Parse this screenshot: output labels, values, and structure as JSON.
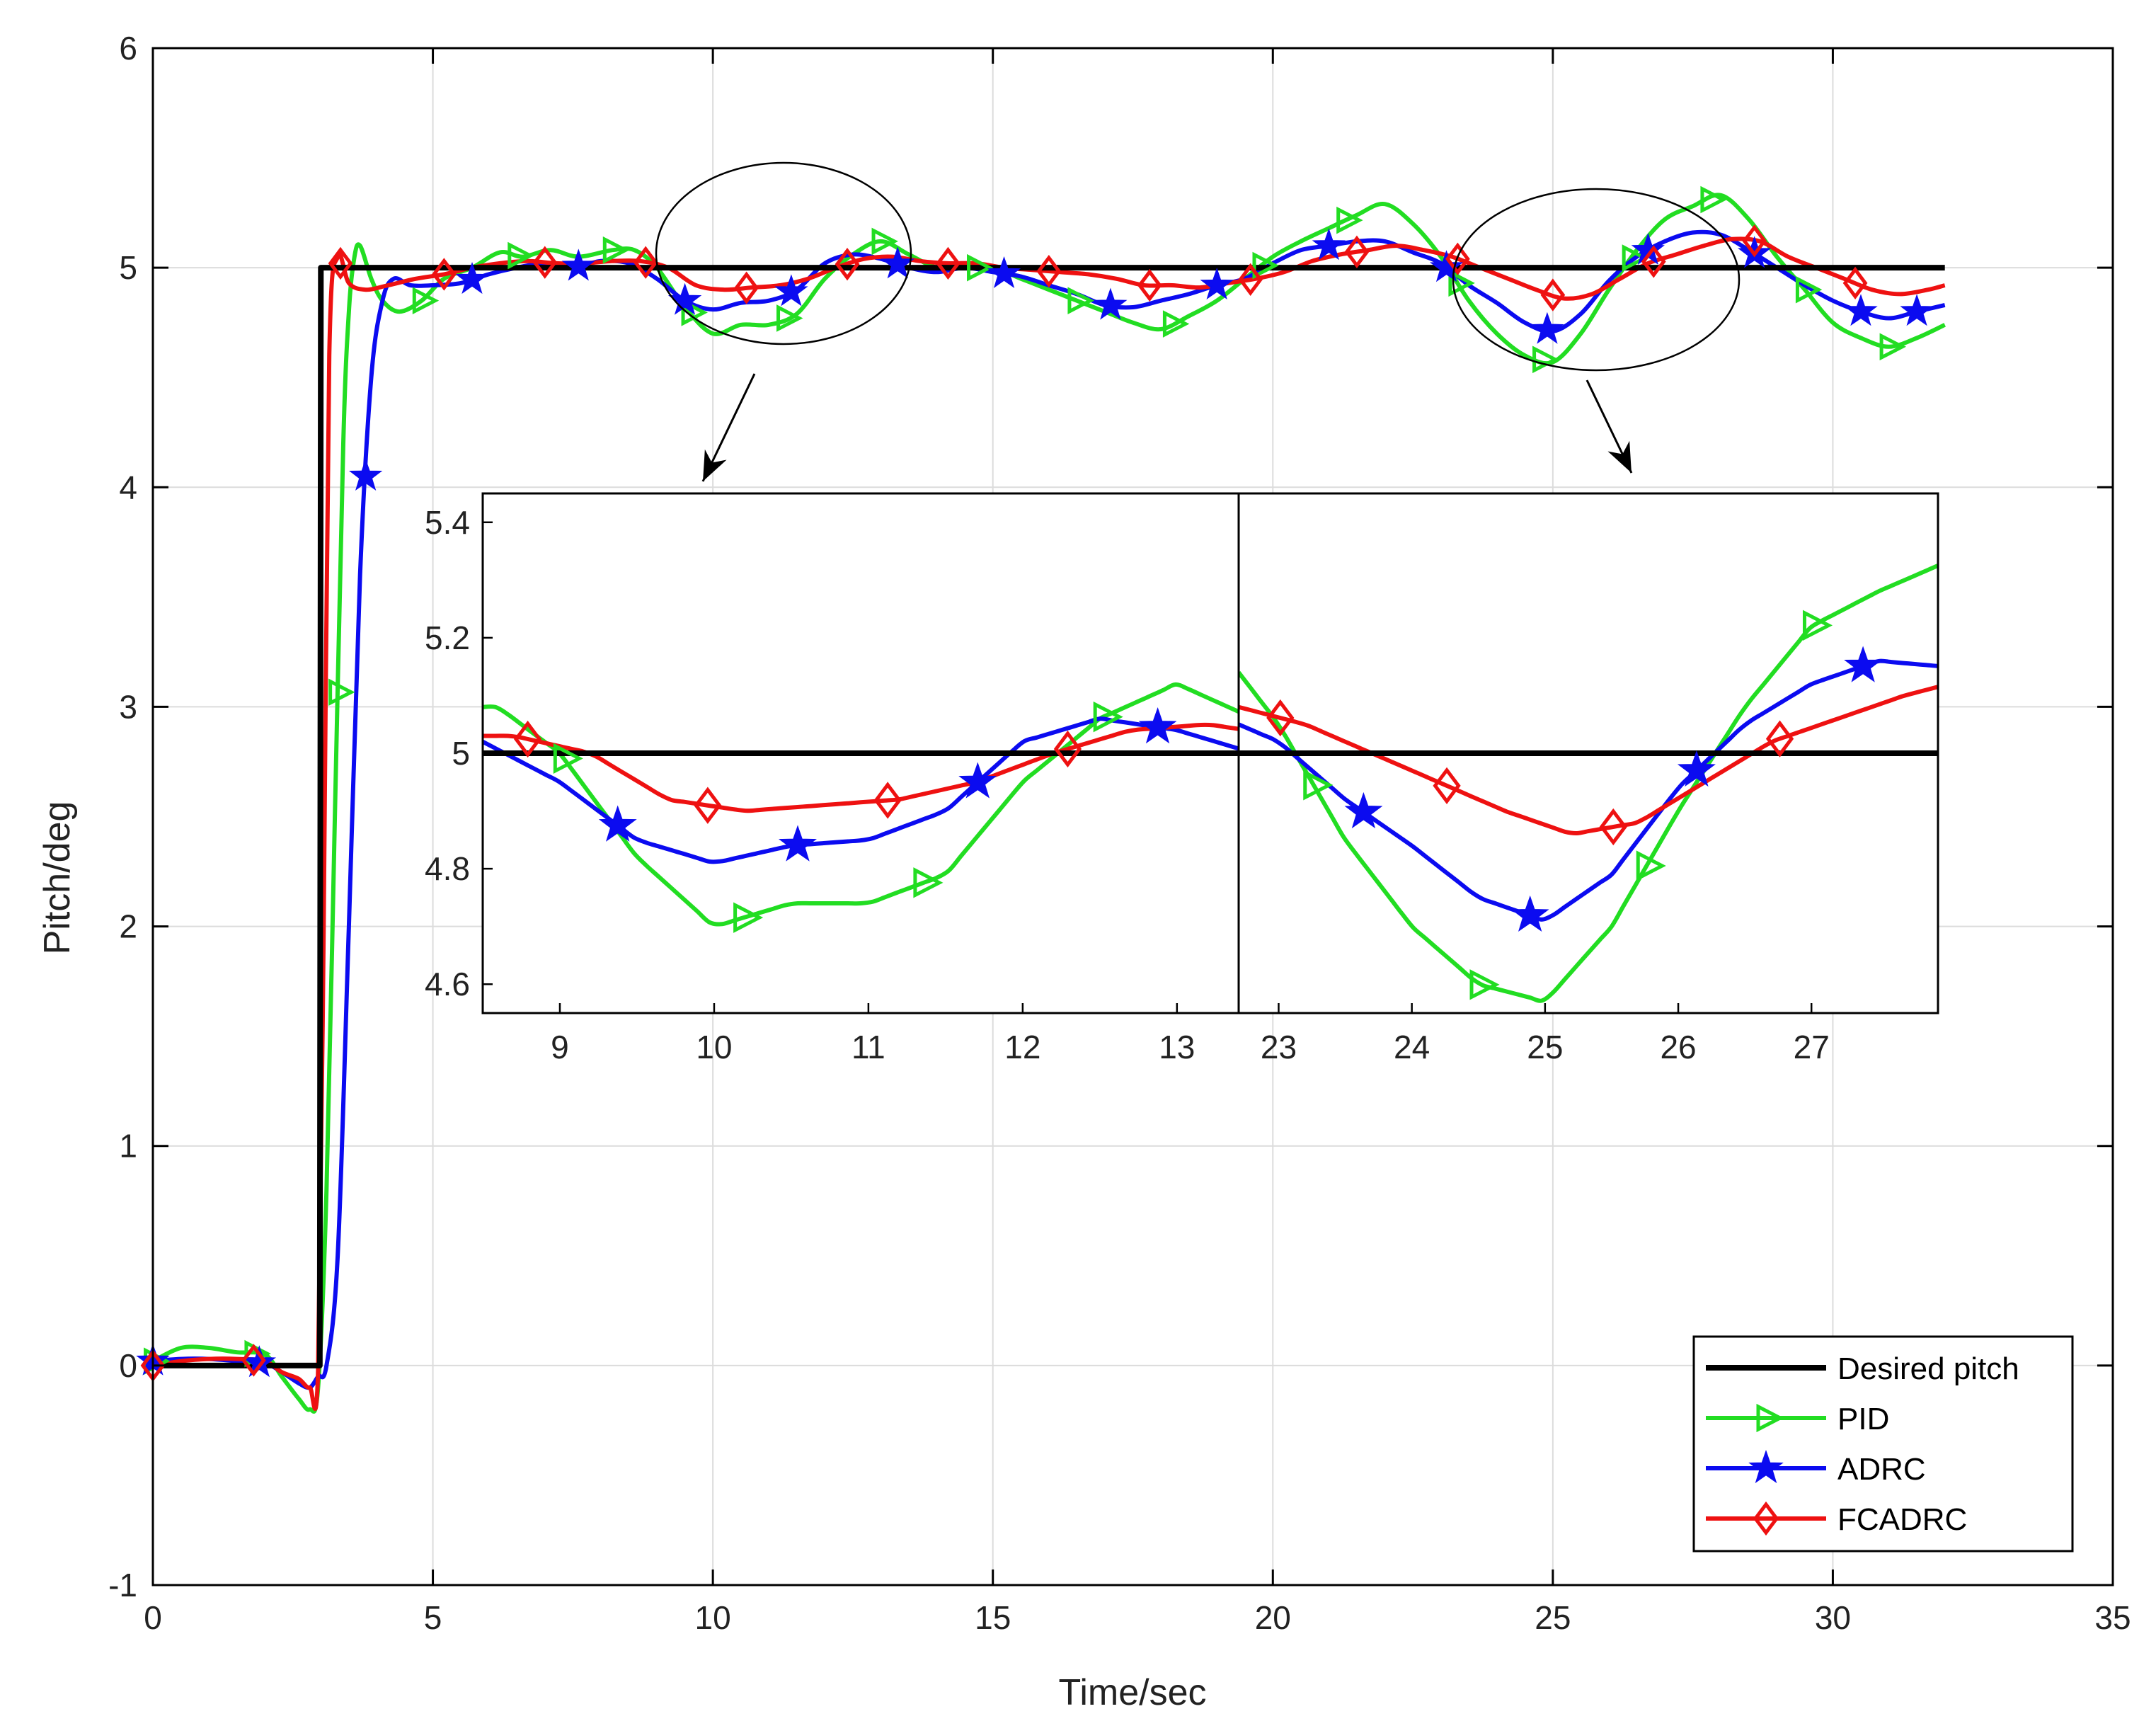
{
  "chart_data": {
    "type": "line",
    "title": "",
    "xlabel": "Time/sec",
    "ylabel": "Pitch/deg",
    "xlim": [
      0,
      35
    ],
    "ylim": [
      -1,
      6
    ],
    "xticks": [
      0,
      5,
      10,
      15,
      20,
      25,
      30,
      35
    ],
    "yticks": [
      -1,
      0,
      1,
      2,
      3,
      4,
      5,
      6
    ],
    "grid": true,
    "legend_position": "bottom-right",
    "colors": {
      "desired": "#000000",
      "pid": "#22dd22",
      "adrc": "#0b0bf0",
      "fcadrc": "#ee1111"
    },
    "series": [
      {
        "name": "Desired pitch",
        "key": "desired",
        "marker": "none",
        "x": [
          0,
          2.98,
          3.0,
          32
        ],
        "y": [
          0,
          0,
          5.0,
          5.0
        ]
      },
      {
        "name": "PID",
        "key": "pid",
        "marker": "triangle-right",
        "x": [
          0,
          0.5,
          1.0,
          1.5,
          2.0,
          2.3,
          2.6,
          2.8,
          2.95,
          3.1,
          3.25,
          3.4,
          3.5,
          3.6,
          3.7,
          3.9,
          4.1,
          4.4,
          4.8,
          5.2,
          5.7,
          6.2,
          6.6,
          7.1,
          7.6,
          8.2,
          8.6,
          9.0,
          9.5,
          10.0,
          10.5,
          11.0,
          11.5,
          12.0,
          12.5,
          13.0,
          13.5,
          14.0,
          14.5,
          15.0,
          15.5,
          16.0,
          16.5,
          17.0,
          17.5,
          18.0,
          18.5,
          19.0,
          19.5,
          20.0,
          20.5,
          21.0,
          21.5,
          22.0,
          22.5,
          23.0,
          23.5,
          24.0,
          24.5,
          25.0,
          25.5,
          26.0,
          26.5,
          27.0,
          27.5,
          28.0,
          28.5,
          29.0,
          29.5,
          30.0,
          30.5,
          31.0,
          31.5,
          32.0
        ],
        "y": [
          0.02,
          0.08,
          0.08,
          0.06,
          0.05,
          -0.05,
          -0.15,
          -0.2,
          -0.1,
          0.8,
          2.5,
          4.2,
          4.8,
          5.05,
          5.1,
          4.95,
          4.85,
          4.8,
          4.85,
          4.95,
          5.0,
          5.07,
          5.05,
          5.08,
          5.05,
          5.08,
          5.08,
          5.0,
          4.82,
          4.7,
          4.74,
          4.74,
          4.79,
          4.95,
          5.06,
          5.12,
          5.06,
          5.0,
          5.0,
          5.0,
          4.95,
          4.9,
          4.85,
          4.8,
          4.75,
          4.72,
          4.78,
          4.85,
          4.95,
          5.05,
          5.12,
          5.18,
          5.24,
          5.29,
          5.2,
          5.05,
          4.85,
          4.7,
          4.6,
          4.57,
          4.7,
          4.9,
          5.08,
          5.22,
          5.28,
          5.33,
          5.22,
          5.05,
          4.9,
          4.75,
          4.68,
          4.64,
          4.68,
          4.74
        ],
        "markers_x": [
          0,
          1.8,
          3.3,
          4.8,
          6.5,
          8.2,
          9.6,
          11.3,
          13.0,
          14.7,
          16.5,
          18.2,
          19.8,
          21.3,
          23.3,
          24.8,
          26.4,
          27.8,
          29.5,
          31.0
        ]
      },
      {
        "name": "ADRC",
        "key": "adrc",
        "marker": "star",
        "x": [
          0,
          0.5,
          1.0,
          1.5,
          2.0,
          2.3,
          2.6,
          2.8,
          2.95,
          3.1,
          3.3,
          3.5,
          3.7,
          3.9,
          4.1,
          4.3,
          4.6,
          5.0,
          5.5,
          6.0,
          6.5,
          7.0,
          7.5,
          8.0,
          8.5,
          9.0,
          9.5,
          10.0,
          10.5,
          11.0,
          11.5,
          12.0,
          12.5,
          13.0,
          13.5,
          14.0,
          14.5,
          15.0,
          15.5,
          16.0,
          16.5,
          17.0,
          17.5,
          18.0,
          18.5,
          19.0,
          19.5,
          20.0,
          20.5,
          21.0,
          21.5,
          22.0,
          22.5,
          23.0,
          23.5,
          24.0,
          24.5,
          25.0,
          25.5,
          26.0,
          26.5,
          27.0,
          27.5,
          28.0,
          28.5,
          29.0,
          29.5,
          30.0,
          30.5,
          31.0,
          31.5,
          32.0
        ],
        "y": [
          0.02,
          0.03,
          0.03,
          0.02,
          0.01,
          -0.03,
          -0.08,
          -0.1,
          -0.05,
          0.0,
          0.5,
          2.0,
          3.6,
          4.5,
          4.85,
          4.95,
          4.92,
          4.92,
          4.93,
          4.97,
          5.0,
          5.02,
          5.0,
          5.03,
          5.02,
          4.95,
          4.85,
          4.81,
          4.84,
          4.85,
          4.9,
          5.02,
          5.06,
          5.04,
          5.0,
          4.98,
          5.0,
          4.98,
          4.96,
          4.92,
          4.88,
          4.83,
          4.82,
          4.85,
          4.88,
          4.92,
          4.95,
          5.02,
          5.08,
          5.1,
          5.12,
          5.12,
          5.07,
          5.02,
          4.92,
          4.84,
          4.75,
          4.71,
          4.79,
          4.94,
          5.05,
          5.12,
          5.16,
          5.15,
          5.08,
          5.0,
          4.92,
          4.85,
          4.8,
          4.77,
          4.8,
          4.83
        ],
        "markers_x": [
          0,
          1.9,
          3.8,
          5.7,
          7.6,
          9.5,
          11.4,
          13.3,
          15.2,
          17.1,
          19.0,
          21.0,
          23.1,
          24.9,
          26.7,
          28.6,
          30.5,
          31.5
        ]
      },
      {
        "name": "FCADRC",
        "key": "fcadrc",
        "marker": "diamond",
        "x": [
          0,
          0.5,
          1.0,
          1.5,
          2.0,
          2.3,
          2.6,
          2.8,
          2.95,
          3.05,
          3.15,
          3.3,
          3.5,
          3.8,
          4.2,
          4.7,
          5.2,
          5.7,
          6.2,
          6.7,
          7.2,
          7.7,
          8.2,
          8.7,
          9.2,
          9.7,
          10.2,
          10.7,
          11.2,
          11.7,
          12.2,
          12.7,
          13.2,
          13.7,
          14.2,
          14.7,
          15.2,
          15.7,
          16.2,
          16.7,
          17.2,
          17.7,
          18.2,
          18.7,
          19.2,
          19.7,
          20.2,
          20.7,
          21.2,
          21.7,
          22.2,
          22.7,
          23.2,
          23.7,
          24.2,
          24.7,
          25.2,
          25.7,
          26.2,
          26.7,
          27.2,
          27.7,
          28.2,
          28.7,
          29.2,
          29.7,
          30.2,
          30.7,
          31.2,
          31.7,
          32.0
        ],
        "y": [
          0.0,
          0.02,
          0.03,
          0.03,
          0.02,
          -0.03,
          -0.06,
          -0.1,
          -0.02,
          2.0,
          4.6,
          5.05,
          4.93,
          4.9,
          4.92,
          4.95,
          4.97,
          5.0,
          5.02,
          5.03,
          5.02,
          5.02,
          5.03,
          5.03,
          5.0,
          4.92,
          4.9,
          4.91,
          4.92,
          4.95,
          5.0,
          5.04,
          5.05,
          5.03,
          5.02,
          5.02,
          5.0,
          4.99,
          4.98,
          4.97,
          4.95,
          4.92,
          4.92,
          4.91,
          4.93,
          4.95,
          4.98,
          5.03,
          5.06,
          5.08,
          5.1,
          5.08,
          5.05,
          5.0,
          4.95,
          4.9,
          4.86,
          4.88,
          4.95,
          5.02,
          5.06,
          5.1,
          5.13,
          5.12,
          5.05,
          5.0,
          4.95,
          4.9,
          4.88,
          4.9,
          4.92
        ],
        "markers_x": [
          0,
          1.8,
          3.35,
          5.2,
          7.0,
          8.8,
          10.6,
          12.4,
          14.2,
          16.0,
          17.8,
          19.6,
          21.5,
          23.3,
          25.0,
          26.8,
          28.6,
          30.4
        ]
      }
    ],
    "insets": [
      {
        "name": "inset-left",
        "xlim": [
          8.5,
          13.4
        ],
        "ylim": [
          4.55,
          5.45
        ],
        "xticks": [
          9,
          10,
          11,
          12,
          13
        ],
        "yticks": [
          4.6,
          4.8,
          5,
          5.2,
          5.4
        ],
        "ytick_labels": [
          "4.6",
          "4.8",
          "5",
          "5.2",
          "5.4"
        ],
        "zoom_center": [
          10.85,
          4.9
        ]
      },
      {
        "name": "inset-right",
        "xlim": [
          22.7,
          27.95
        ],
        "ylim": [
          4.55,
          5.45
        ],
        "xticks": [
          23,
          24,
          25,
          26,
          27
        ],
        "yticks": [],
        "ytick_labels": [],
        "zoom_center": [
          25.2,
          4.88
        ]
      }
    ]
  },
  "legend": {
    "items": [
      {
        "label": "Desired pitch",
        "key": "desired"
      },
      {
        "label": "PID",
        "key": "pid"
      },
      {
        "label": "ADRC",
        "key": "adrc"
      },
      {
        "label": "FCADRC",
        "key": "fcadrc"
      }
    ]
  }
}
